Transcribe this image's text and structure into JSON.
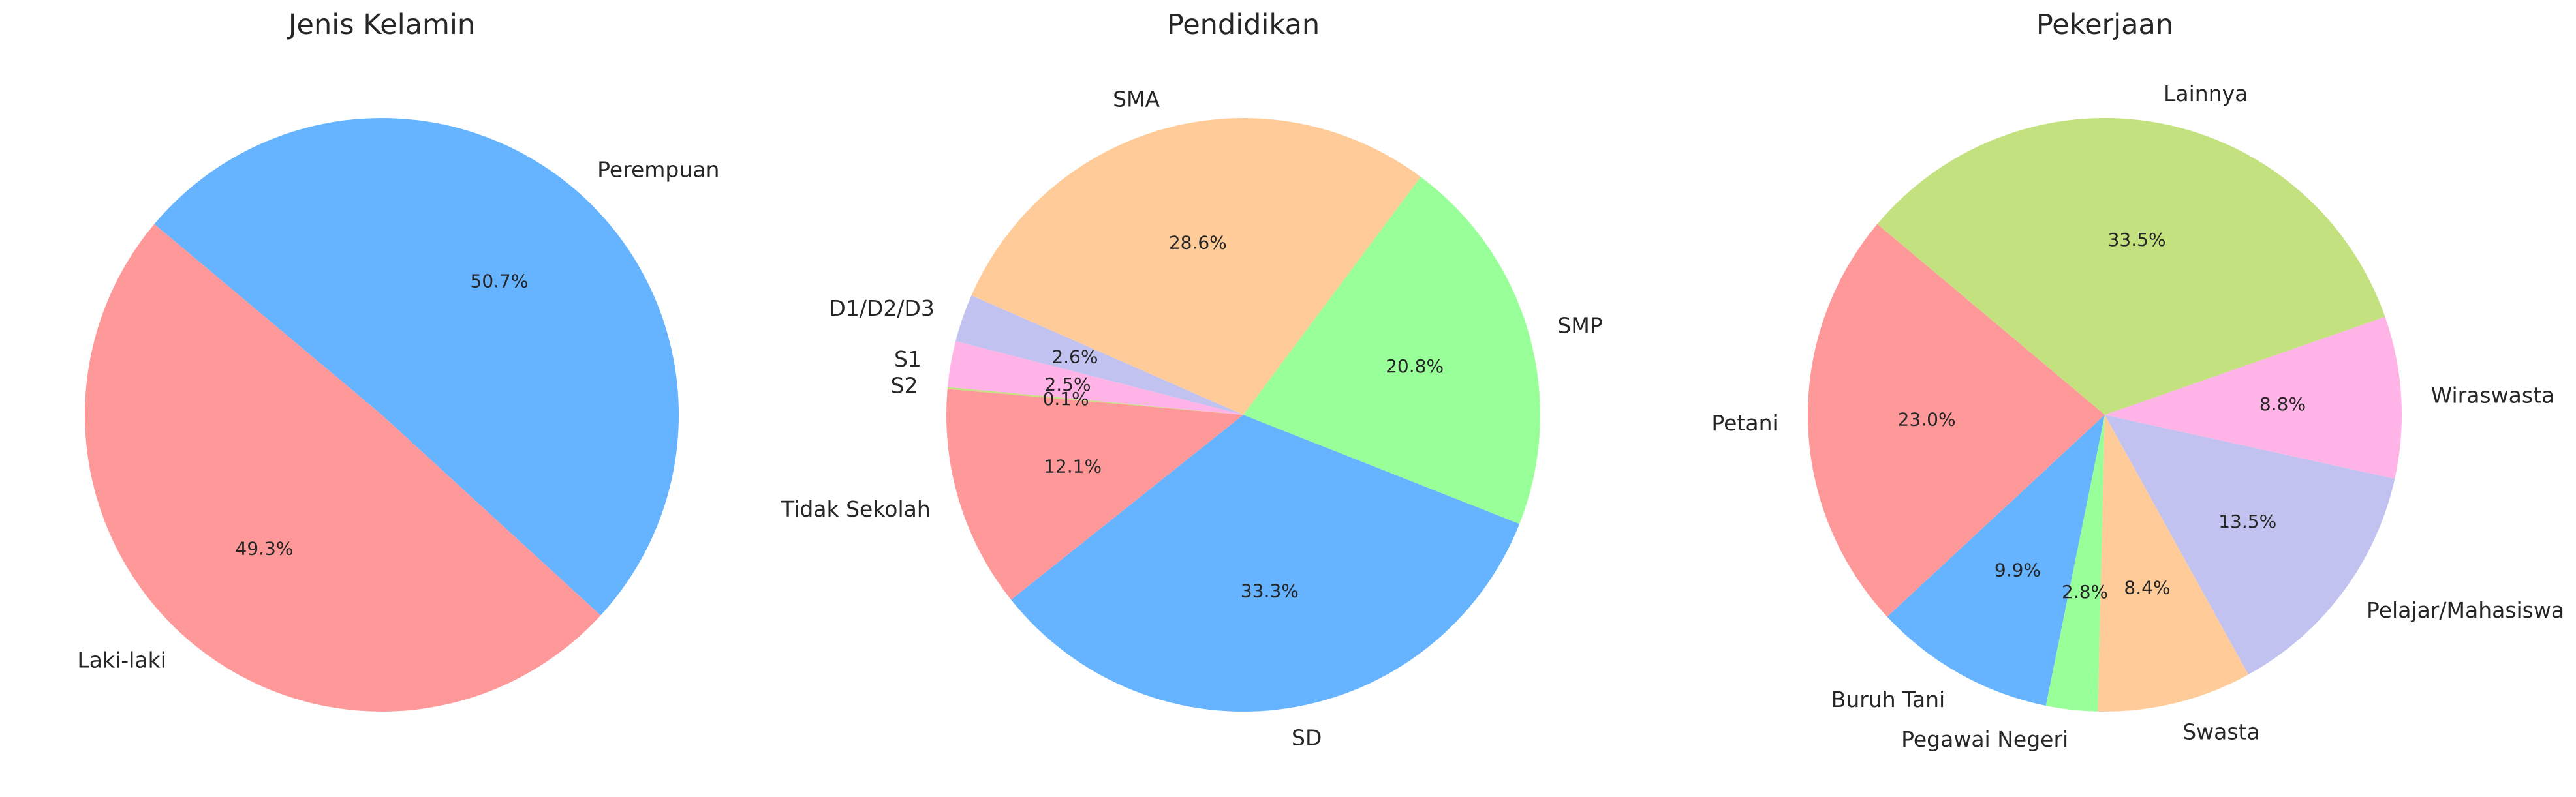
{
  "colors": [
    "#ff9999",
    "#66b3ff",
    "#99ff99",
    "#ffcc99",
    "#c2c2f0",
    "#ffb3e6",
    "#c4e17f"
  ],
  "chart_data": [
    {
      "type": "pie",
      "title": "Jenis Kelamin",
      "labels": [
        "Laki-laki",
        "Perempuan"
      ],
      "values": [
        49.3,
        50.7
      ],
      "pct_labels": [
        "49.3%",
        "50.7%"
      ],
      "colors": [
        "#ff9999",
        "#66b3ff"
      ]
    },
    {
      "type": "pie",
      "title": "Pendidikan",
      "labels": [
        "Tidak Sekolah",
        "SD",
        "SMP",
        "SMA",
        "D1/D2/D3",
        "S1",
        "S2"
      ],
      "values": [
        12.1,
        33.3,
        20.8,
        28.6,
        2.6,
        2.5,
        0.1
      ],
      "pct_labels": [
        "12.1%",
        "33.3%",
        "20.8%",
        "28.6%",
        "2.6%",
        "2.5%",
        "0.1%"
      ],
      "colors": [
        "#ff9999",
        "#66b3ff",
        "#99ff99",
        "#ffcc99",
        "#c2c2f0",
        "#ffb3e6",
        "#c4e17f"
      ]
    },
    {
      "type": "pie",
      "title": "Pekerjaan",
      "labels": [
        "Petani",
        "Buruh Tani",
        "Pegawai Negeri",
        "Swasta",
        "Pelajar/Mahasiswa",
        "Wiraswasta",
        "Lainnya"
      ],
      "values": [
        23.0,
        9.9,
        2.8,
        8.4,
        13.5,
        8.8,
        33.5
      ],
      "pct_labels": [
        "23.0%",
        "9.9%",
        "2.8%",
        "8.4%",
        "13.5%",
        "8.8%",
        "33.5%"
      ],
      "colors": [
        "#ff9999",
        "#66b3ff",
        "#99ff99",
        "#ffcc99",
        "#c2c2f0",
        "#ffb3e6",
        "#c4e17f"
      ]
    }
  ]
}
